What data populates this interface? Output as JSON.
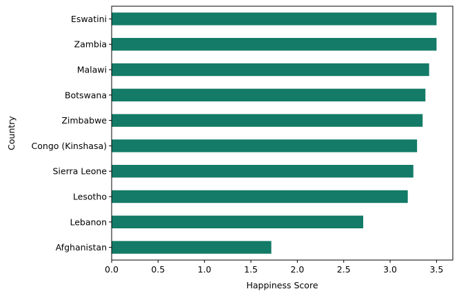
{
  "chart_data": {
    "type": "bar",
    "orientation": "horizontal",
    "categories": [
      "Afghanistan",
      "Lebanon",
      "Lesotho",
      "Sierra Leone",
      "Congo (Kinshasa)",
      "Zimbabwe",
      "Botswana",
      "Malawi",
      "Zambia",
      "Eswatini"
    ],
    "values": [
      1.72,
      2.71,
      3.19,
      3.25,
      3.29,
      3.35,
      3.38,
      3.42,
      3.5,
      3.5
    ],
    "xlabel": "Happiness Score",
    "ylabel": "Country",
    "xlim": [
      0,
      3.675
    ],
    "xticks": [
      "0.0",
      "0.5",
      "1.0",
      "1.5",
      "2.0",
      "2.5",
      "3.0",
      "3.5"
    ],
    "grid": false,
    "legend": "none",
    "bar_color": "#137b67"
  }
}
